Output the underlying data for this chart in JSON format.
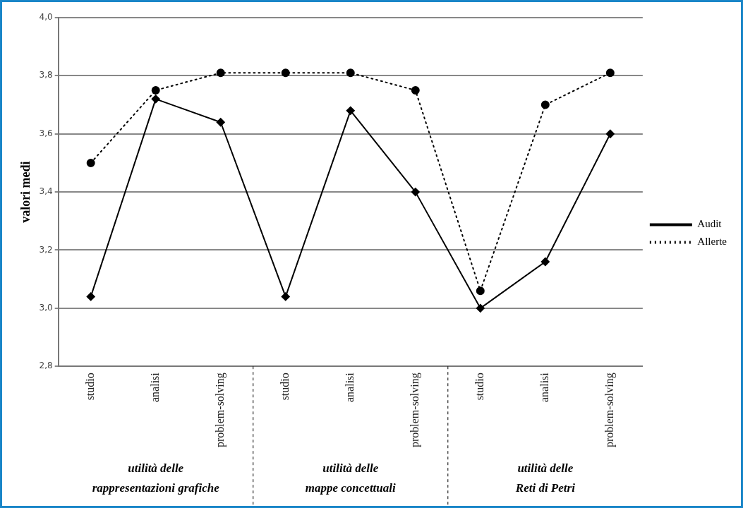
{
  "chart_data": {
    "type": "line",
    "ylabel": "valori medi",
    "categories": [
      "studio",
      "analisi",
      "problem-solving",
      "studio",
      "analisi",
      "problem-solving",
      "studio",
      "analisi",
      "problem-solving"
    ],
    "series": [
      {
        "name": "Audit",
        "color": "#000000",
        "line_style": "solid",
        "marker": "diamond",
        "values": [
          3.04,
          3.72,
          3.64,
          3.04,
          3.68,
          3.4,
          3.0,
          3.16,
          3.6
        ]
      },
      {
        "name": "Allerte",
        "color": "#000000",
        "line_style": "dotted",
        "marker": "circle",
        "values": [
          3.5,
          3.75,
          3.81,
          3.81,
          3.81,
          3.75,
          3.06,
          3.7,
          3.81
        ]
      }
    ],
    "ylim": [
      2.8,
      4.0
    ],
    "yticks": [
      {
        "value": 2.8,
        "label": "2,8"
      },
      {
        "value": 3.0,
        "label": "3,0"
      },
      {
        "value": 3.2,
        "label": "3,2"
      },
      {
        "value": 3.4,
        "label": "3,4"
      },
      {
        "value": 3.6,
        "label": "3,6"
      },
      {
        "value": 3.8,
        "label": "3,8"
      },
      {
        "value": 4.0,
        "label": "4,0"
      }
    ],
    "grid": "y",
    "legend": "right",
    "annotations": [
      "utilità delle\nrappresentazioni grafiche",
      "utilità delle\nmappe concettuali",
      "utilità delle\nReti di Petri"
    ]
  }
}
